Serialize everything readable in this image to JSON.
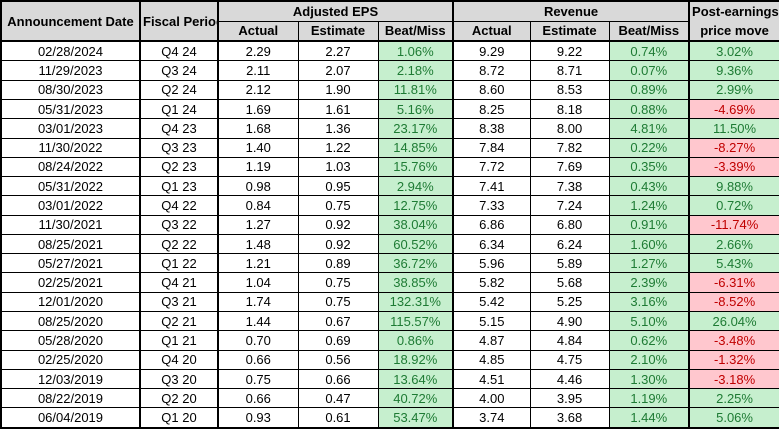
{
  "chart_data": {
    "type": "table",
    "headers": {
      "announcement_date": "Announcement Date",
      "fiscal_period": "Fiscal Period",
      "adjusted_eps_group": "Adjusted EPS",
      "revenue_group": "Revenue",
      "post_earnings_line1": "Post-earnings",
      "post_earnings_line2": "price move",
      "sub_actual": "Actual",
      "sub_estimate": "Estimate",
      "sub_beat_miss": "Beat/Miss"
    },
    "columns": [
      "Announcement Date",
      "Fiscal Period",
      "EPS Actual",
      "EPS Estimate",
      "EPS Beat/Miss",
      "Revenue Actual",
      "Revenue Estimate",
      "Revenue Beat/Miss",
      "Post-earnings price move"
    ],
    "rows": [
      [
        "02/28/2024",
        "Q4 24",
        "2.29",
        "2.27",
        "1.06%",
        "9.29",
        "9.22",
        "0.74%",
        "3.02%"
      ],
      [
        "11/29/2023",
        "Q3 24",
        "2.11",
        "2.07",
        "2.18%",
        "8.72",
        "8.71",
        "0.07%",
        "9.36%"
      ],
      [
        "08/30/2023",
        "Q2 24",
        "2.12",
        "1.90",
        "11.81%",
        "8.60",
        "8.53",
        "0.89%",
        "2.99%"
      ],
      [
        "05/31/2023",
        "Q1 24",
        "1.69",
        "1.61",
        "5.16%",
        "8.25",
        "8.18",
        "0.88%",
        "-4.69%"
      ],
      [
        "03/01/2023",
        "Q4 23",
        "1.68",
        "1.36",
        "23.17%",
        "8.38",
        "8.00",
        "4.81%",
        "11.50%"
      ],
      [
        "11/30/2022",
        "Q3 23",
        "1.40",
        "1.22",
        "14.85%",
        "7.84",
        "7.82",
        "0.22%",
        "-8.27%"
      ],
      [
        "08/24/2022",
        "Q2 23",
        "1.19",
        "1.03",
        "15.76%",
        "7.72",
        "7.69",
        "0.35%",
        "-3.39%"
      ],
      [
        "05/31/2022",
        "Q1 23",
        "0.98",
        "0.95",
        "2.94%",
        "7.41",
        "7.38",
        "0.43%",
        "9.88%"
      ],
      [
        "03/01/2022",
        "Q4 22",
        "0.84",
        "0.75",
        "12.75%",
        "7.33",
        "7.24",
        "1.24%",
        "0.72%"
      ],
      [
        "11/30/2021",
        "Q3 22",
        "1.27",
        "0.92",
        "38.04%",
        "6.86",
        "6.80",
        "0.91%",
        "-11.74%"
      ],
      [
        "08/25/2021",
        "Q2 22",
        "1.48",
        "0.92",
        "60.52%",
        "6.34",
        "6.24",
        "1.60%",
        "2.66%"
      ],
      [
        "05/27/2021",
        "Q1 22",
        "1.21",
        "0.89",
        "36.72%",
        "5.96",
        "5.89",
        "1.27%",
        "5.43%"
      ],
      [
        "02/25/2021",
        "Q4 21",
        "1.04",
        "0.75",
        "38.85%",
        "5.82",
        "5.68",
        "2.39%",
        "-6.31%"
      ],
      [
        "12/01/2020",
        "Q3 21",
        "1.74",
        "0.75",
        "132.31%",
        "5.42",
        "5.25",
        "3.16%",
        "-8.52%"
      ],
      [
        "08/25/2020",
        "Q2 21",
        "1.44",
        "0.67",
        "115.57%",
        "5.15",
        "4.90",
        "5.10%",
        "26.04%"
      ],
      [
        "05/28/2020",
        "Q1 21",
        "0.70",
        "0.69",
        "0.86%",
        "4.87",
        "4.84",
        "0.62%",
        "-3.48%"
      ],
      [
        "02/25/2020",
        "Q4 20",
        "0.66",
        "0.56",
        "18.92%",
        "4.85",
        "4.75",
        "2.10%",
        "-1.32%"
      ],
      [
        "12/03/2019",
        "Q3 20",
        "0.75",
        "0.66",
        "13.64%",
        "4.51",
        "4.46",
        "1.30%",
        "-3.18%"
      ],
      [
        "08/22/2019",
        "Q2 20",
        "0.66",
        "0.47",
        "40.72%",
        "4.00",
        "3.95",
        "1.19%",
        "2.25%"
      ],
      [
        "06/04/2019",
        "Q1 20",
        "0.93",
        "0.61",
        "53.47%",
        "3.74",
        "3.68",
        "1.44%",
        "5.06%"
      ]
    ],
    "colors": {
      "header_bg": "#d9d9d9",
      "positive_bg": "#c6efce",
      "positive_text": "#1e7b34",
      "negative_bg": "#ffc7ce",
      "negative_text": "#c00000",
      "grid": "#000000"
    }
  }
}
